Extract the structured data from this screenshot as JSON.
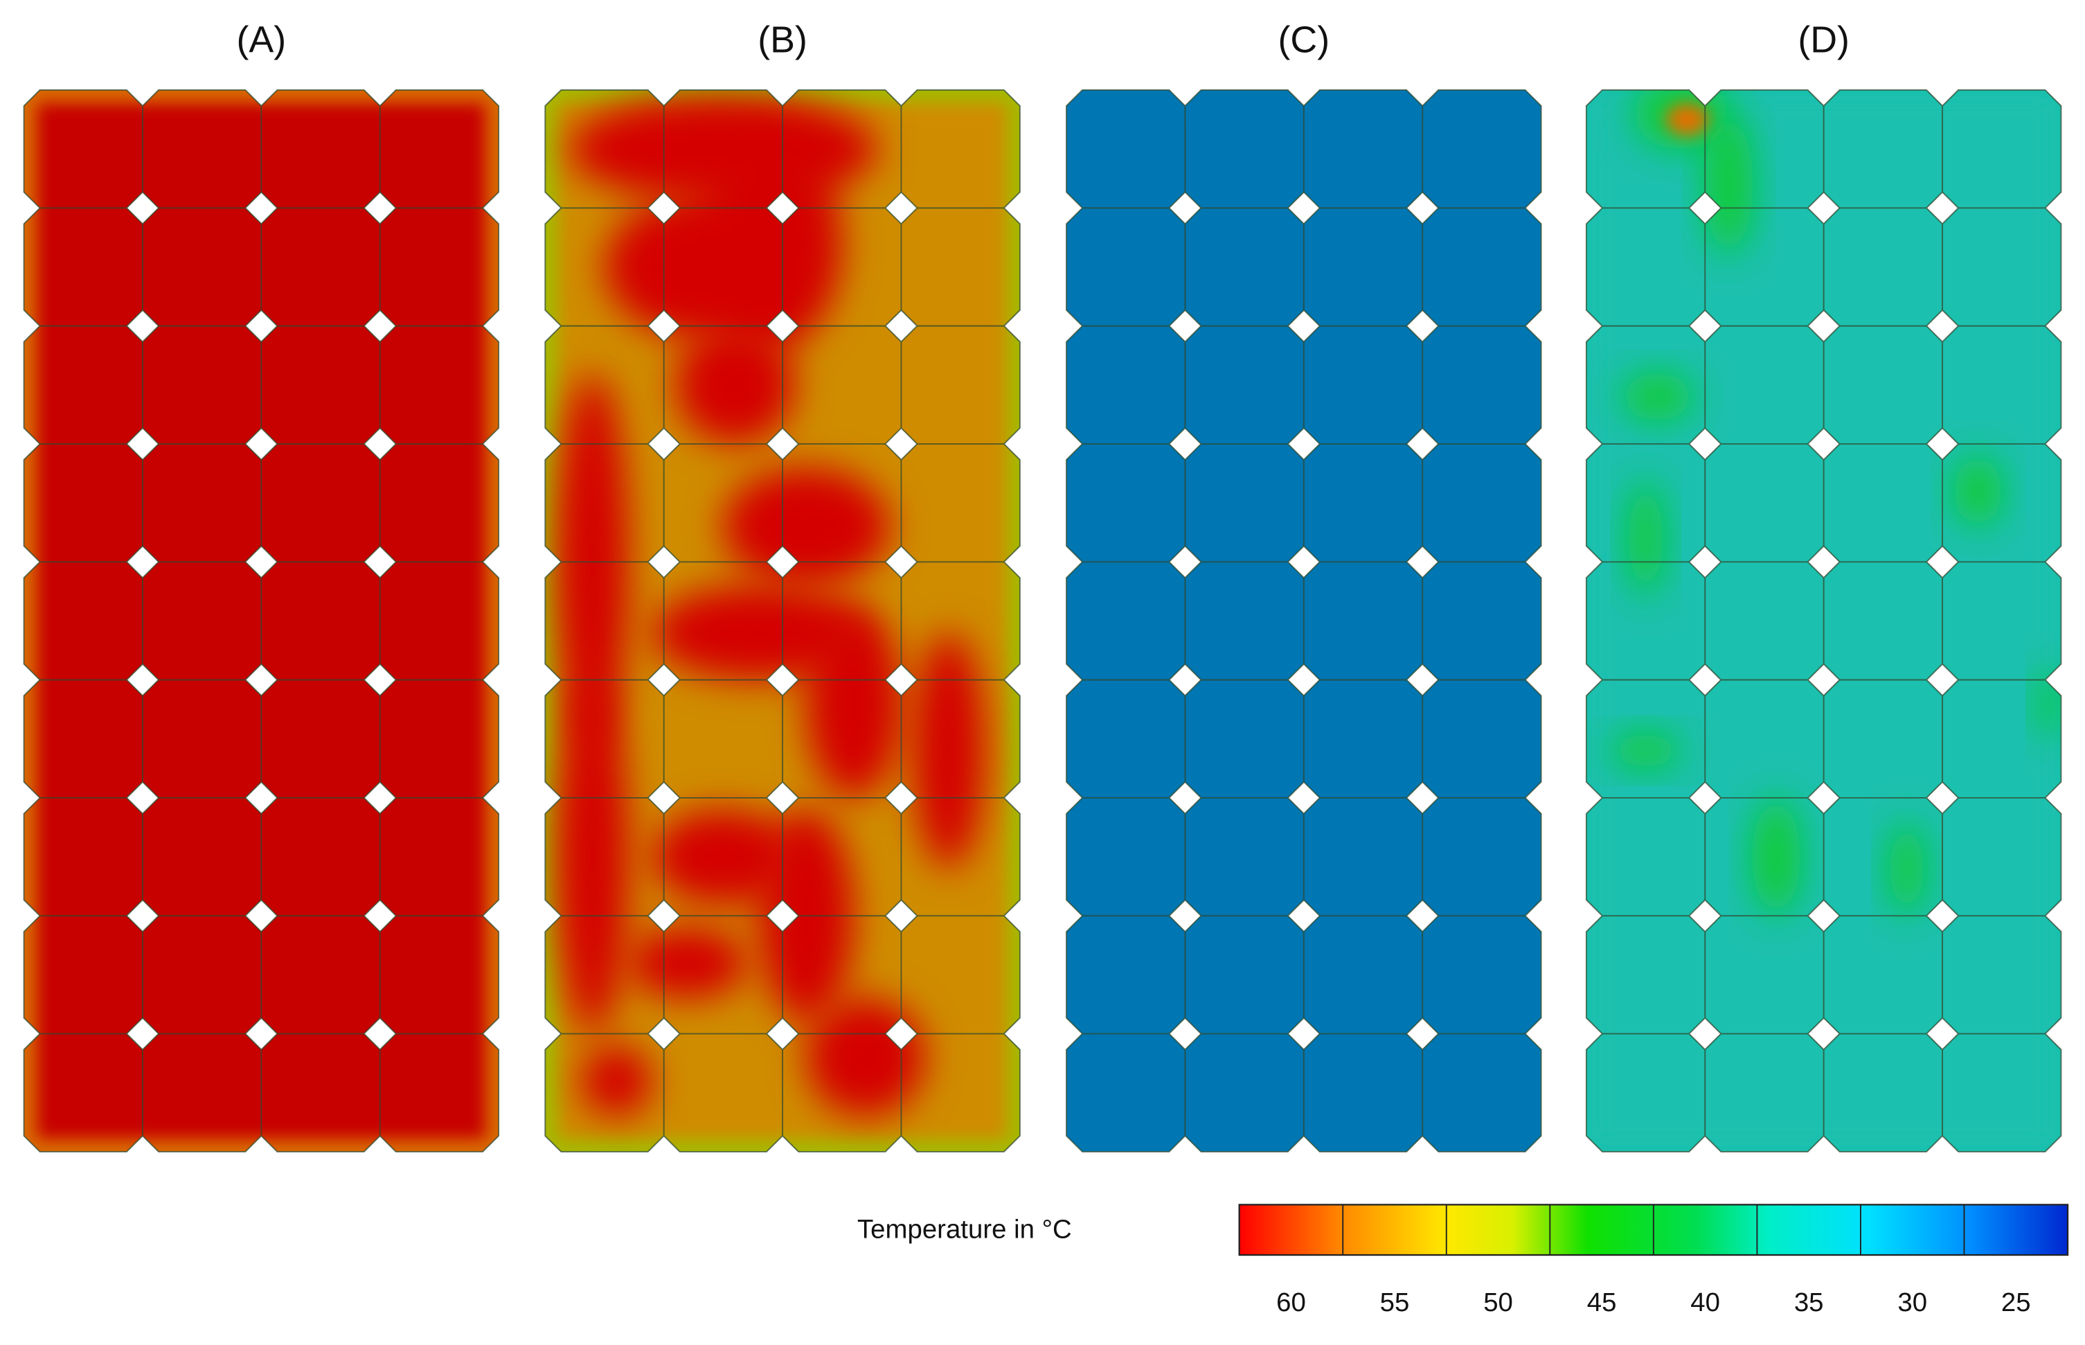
{
  "panels": [
    {
      "label": "(A)"
    },
    {
      "label": "(B)"
    },
    {
      "label": "(C)"
    },
    {
      "label": "(D)"
    }
  ],
  "colorbar": {
    "label": "Temperature in °C",
    "ticks": [
      60,
      55,
      50,
      45,
      40,
      35,
      30,
      25
    ]
  }
}
